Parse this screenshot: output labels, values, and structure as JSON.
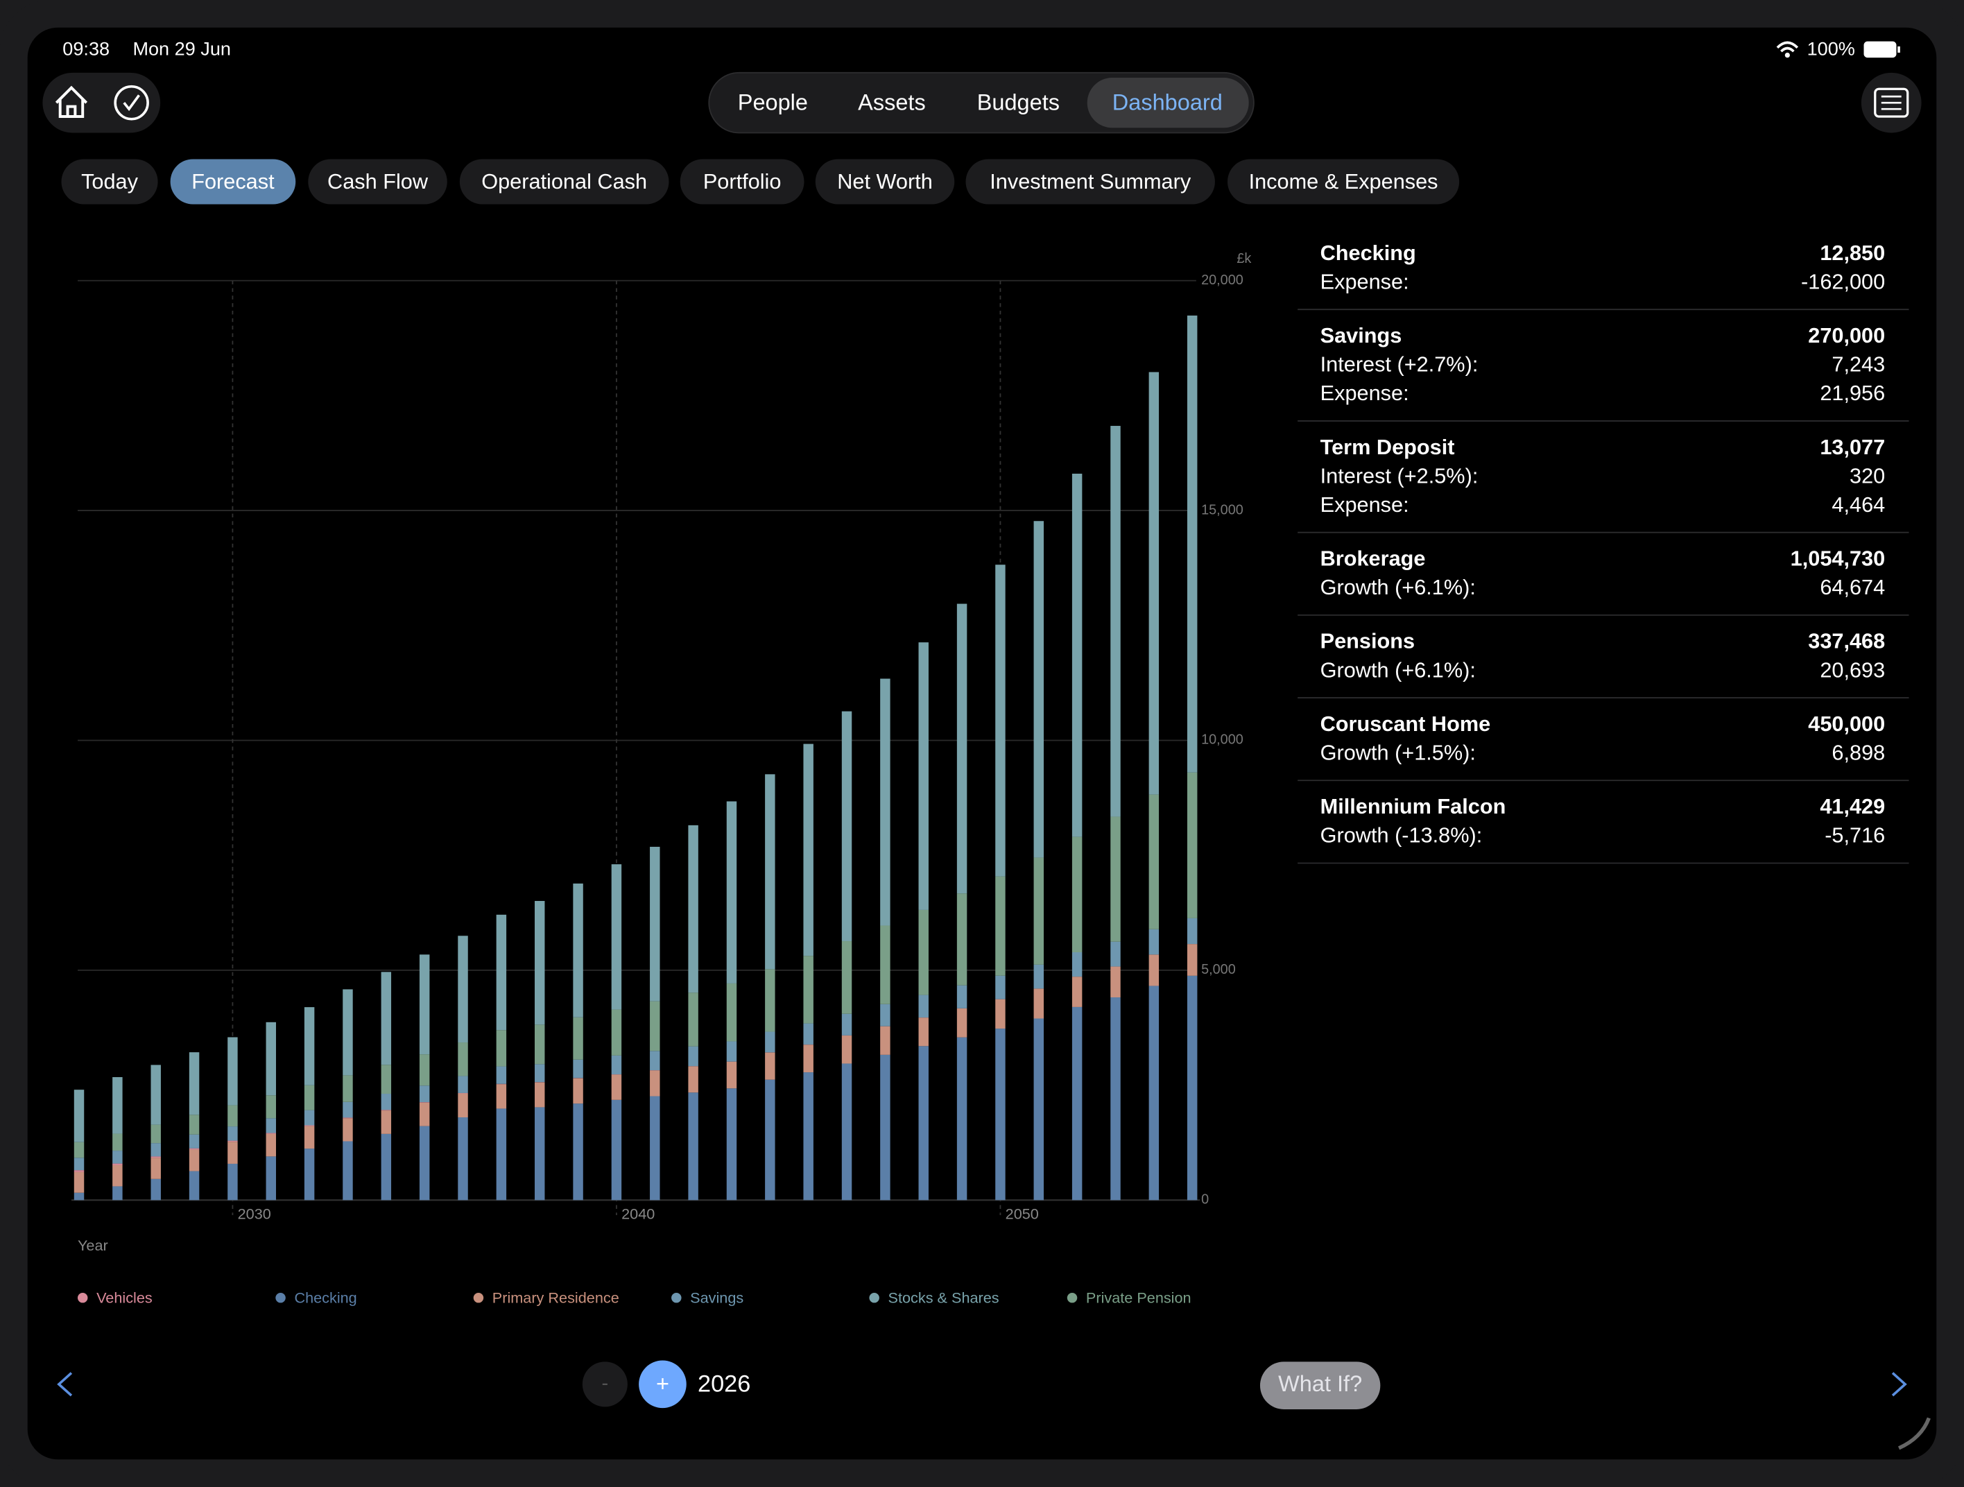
{
  "status_bar": {
    "time": "09:38",
    "date": "Mon 29 Jun",
    "battery": "100%"
  },
  "nav": {
    "tabs": [
      "People",
      "Assets",
      "Budgets",
      "Dashboard"
    ],
    "selected": 3
  },
  "subtabs": {
    "tabs": [
      "Today",
      "Forecast",
      "Cash Flow",
      "Operational Cash",
      "Portfolio",
      "Net Worth",
      "Investment Summary",
      "Income & Expenses"
    ],
    "selected": 1
  },
  "chart_data": {
    "type": "bar",
    "stacked": true,
    "grid": true,
    "y_unit": "£k",
    "xlabel": "Year",
    "x": [
      2026,
      2027,
      2028,
      2029,
      2030,
      2031,
      2032,
      2033,
      2034,
      2035,
      2036,
      2037,
      2038,
      2039,
      2040,
      2041,
      2042,
      2043,
      2044,
      2045,
      2046,
      2047,
      2048,
      2049,
      2050,
      2051,
      2052,
      2053,
      2054,
      2055
    ],
    "xlim": [
      2025.8,
      2055.2
    ],
    "xticks": [
      2030,
      2040,
      2050
    ],
    "ylim": [
      0,
      20000
    ],
    "yticks": [
      0,
      {
        "value": 5000,
        "label": "5,000"
      },
      {
        "value": 10000,
        "label": "10,000"
      },
      {
        "value": 15000,
        "label": "15,000"
      },
      {
        "value": 20000,
        "label": "20,000"
      }
    ],
    "legend_order": [
      "Vehicles",
      "Checking",
      "Primary Residence",
      "Savings",
      "Stocks & Shares",
      "Private Pension"
    ],
    "series": [
      {
        "name": "Checking",
        "color": "#5b7fa8",
        "values": [
          160,
          300,
          460,
          630,
          790,
          950,
          1120,
          1280,
          1440,
          1610,
          1800,
          1990,
          2020,
          2100,
          2180,
          2260,
          2340,
          2430,
          2620,
          2780,
          2970,
          3160,
          3350,
          3540,
          3730,
          3950,
          4200,
          4410,
          4660,
          4880
        ]
      },
      {
        "name": "Primary Residence",
        "color": "#c9917e",
        "values": [
          450,
          460,
          460,
          470,
          480,
          490,
          490,
          500,
          510,
          510,
          520,
          530,
          540,
          550,
          550,
          560,
          570,
          580,
          590,
          600,
          610,
          620,
          620,
          630,
          640,
          650,
          660,
          670,
          680,
          690
        ]
      },
      {
        "name": "Vehicles",
        "color": "#d98a9a",
        "values": [
          41,
          35,
          30,
          26,
          23,
          20,
          17,
          15,
          13,
          11,
          9,
          8,
          7,
          6,
          5,
          5,
          4,
          3,
          3,
          3,
          2,
          2,
          2,
          1,
          1,
          1,
          1,
          1,
          1,
          1
        ]
      },
      {
        "name": "Savings",
        "color": "#6e97b0",
        "values": [
          270,
          280,
          290,
          300,
          310,
          320,
          330,
          340,
          350,
          360,
          370,
          380,
          390,
          400,
          410,
          420,
          430,
          440,
          450,
          460,
          470,
          480,
          490,
          500,
          510,
          520,
          530,
          540,
          550,
          560
        ]
      },
      {
        "name": "Private Pension",
        "color": "#7a9f88",
        "values": [
          340,
          370,
          400,
          430,
          460,
          500,
          540,
          580,
          630,
          680,
          730,
          790,
          860,
          920,
          1000,
          1080,
          1170,
          1260,
          1360,
          1470,
          1580,
          1710,
          1850,
          2000,
          2160,
          2330,
          2510,
          2720,
          2930,
          3170
        ]
      },
      {
        "name": "Stocks & Shares",
        "color": "#79a3ab",
        "values": [
          1140,
          1230,
          1300,
          1360,
          1480,
          1590,
          1700,
          1870,
          2020,
          2170,
          2320,
          2510,
          2690,
          2910,
          3160,
          3360,
          3640,
          3960,
          4240,
          4610,
          5000,
          5370,
          5820,
          6300,
          6780,
          7320,
          7900,
          8500,
          9190,
          9940
        ]
      }
    ]
  },
  "accounts": [
    {
      "name": "Checking",
      "value": "12,850",
      "details": [
        {
          "label": "Expense:",
          "value": "-162,000"
        }
      ]
    },
    {
      "name": "Savings",
      "value": "270,000",
      "details": [
        {
          "label": "Interest (+2.7%):",
          "value": "7,243"
        },
        {
          "label": "Expense:",
          "value": "21,956"
        }
      ]
    },
    {
      "name": "Term Deposit",
      "value": "13,077",
      "details": [
        {
          "label": "Interest (+2.5%):",
          "value": "320"
        },
        {
          "label": "Expense:",
          "value": "4,464"
        }
      ]
    },
    {
      "name": "Brokerage",
      "value": "1,054,730",
      "details": [
        {
          "label": "Growth (+6.1%):",
          "value": "64,674"
        }
      ]
    },
    {
      "name": "Pensions",
      "value": "337,468",
      "details": [
        {
          "label": "Growth (+6.1%):",
          "value": "20,693"
        }
      ]
    },
    {
      "name": "Coruscant Home",
      "value": "450,000",
      "details": [
        {
          "label": "Growth (+1.5%):",
          "value": "6,898"
        }
      ]
    },
    {
      "name": "Millennium Falcon",
      "value": "41,429",
      "details": [
        {
          "label": "Growth (-13.8%):",
          "value": "-5,716"
        }
      ]
    }
  ],
  "controls": {
    "decrement": "-",
    "increment": "+",
    "year": "2026",
    "what_if": "What If?"
  }
}
